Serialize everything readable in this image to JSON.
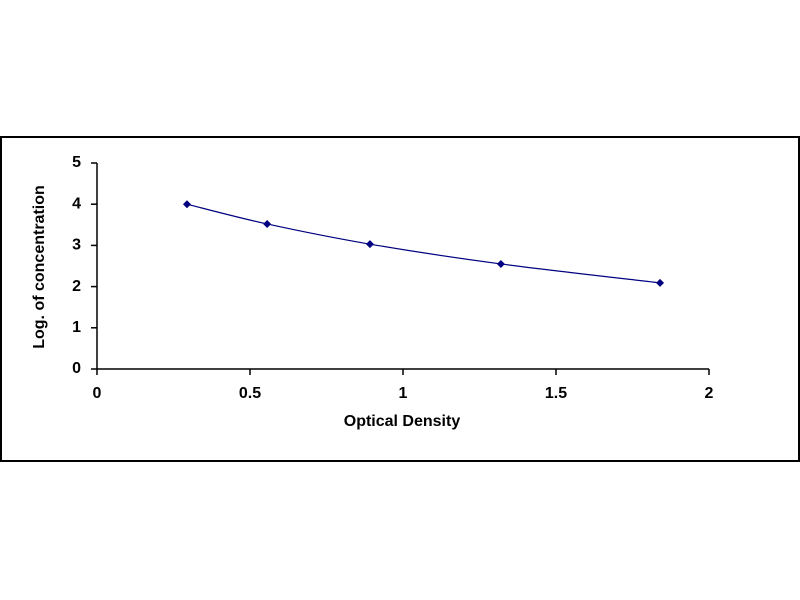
{
  "chart_data": {
    "type": "scatter",
    "x_label": "Optical Density",
    "y_label": "Log. of concentration",
    "x": [
      0.294,
      0.556,
      0.892,
      1.32,
      1.84
    ],
    "series": [
      {
        "color": "#000080",
        "values": [
          4.0,
          3.52,
          3.03,
          2.55,
          2.09
        ]
      }
    ],
    "smooth": true,
    "xlim": [
      0,
      2
    ],
    "xticks": [
      0,
      0.5,
      1,
      1.5,
      2
    ],
    "ylim": [
      0,
      5
    ],
    "yticks": [
      0,
      1,
      2,
      3,
      4,
      5
    ],
    "grid": false
  }
}
